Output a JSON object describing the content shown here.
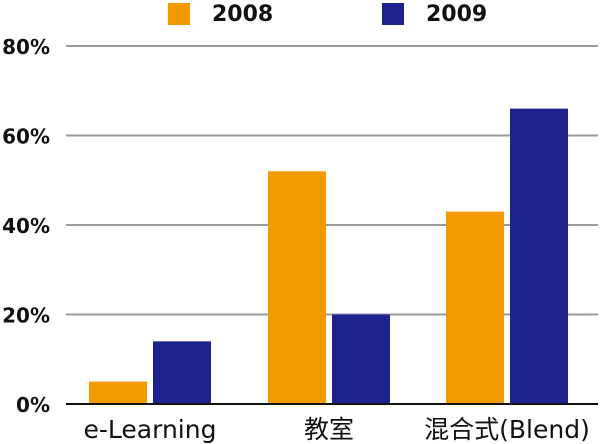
{
  "chart_data": {
    "type": "bar",
    "title": "",
    "xlabel": "",
    "ylabel": "",
    "categories": [
      "e-Learning",
      "教室",
      "混合式(Blend)"
    ],
    "series": [
      {
        "name": "2008",
        "color": "#F39A00",
        "values": [
          5,
          52,
          43
        ]
      },
      {
        "name": "2009",
        "color": "#1E228C",
        "values": [
          14,
          20,
          66
        ]
      }
    ],
    "ylim": [
      0,
      80
    ],
    "yticks": [
      0,
      20,
      40,
      60,
      80
    ],
    "ytick_labels": [
      "0%",
      "20%",
      "40%",
      "60%",
      "80%"
    ],
    "grid": true,
    "legend_position": "top-center"
  }
}
